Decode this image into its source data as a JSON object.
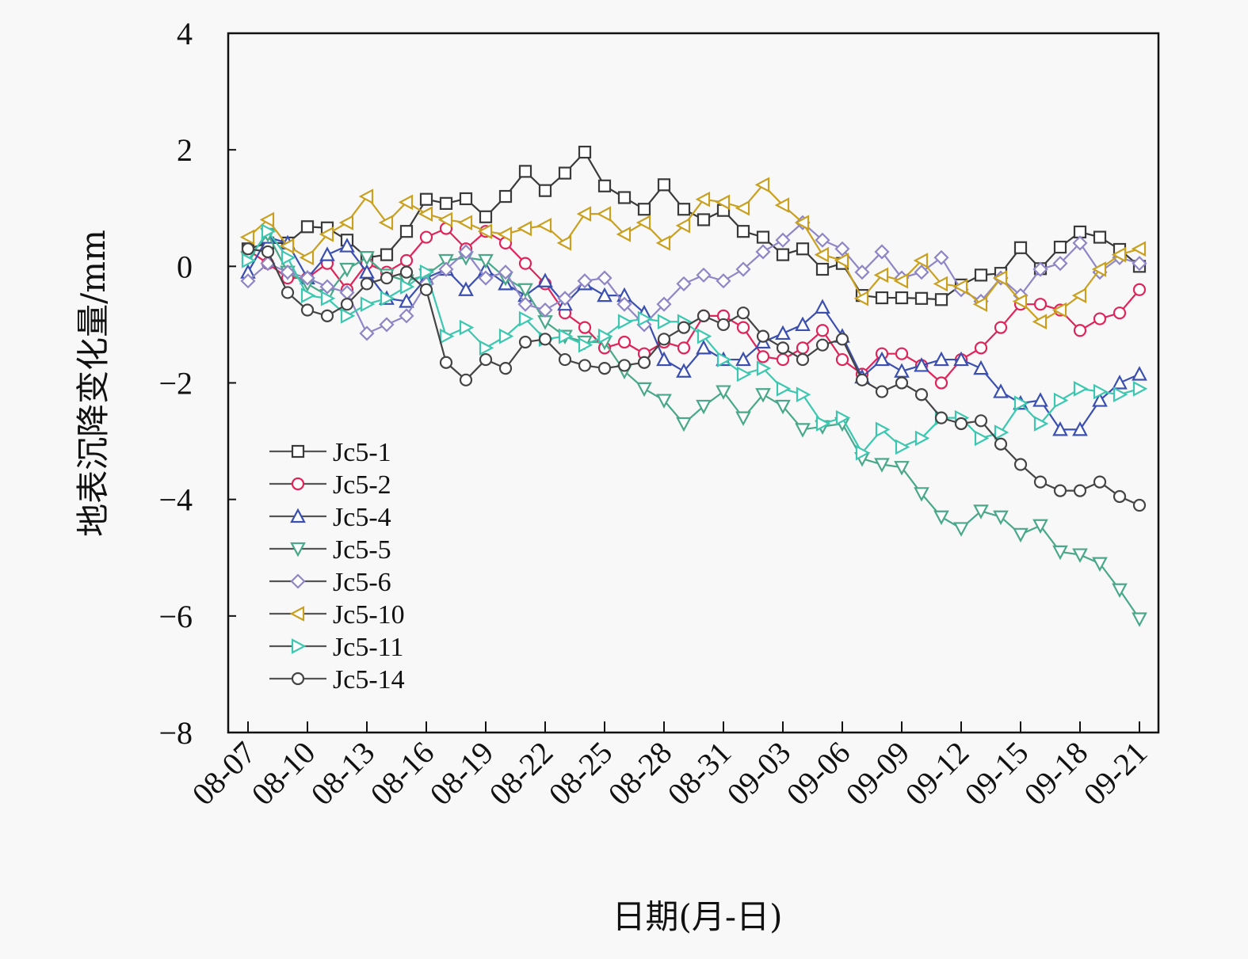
{
  "chart_data": {
    "type": "line",
    "title": "",
    "xlabel": "日期(月-日)",
    "ylabel": "地表沉降变化量/mm",
    "ylim": [
      -8,
      4
    ],
    "yticks": [
      4,
      2,
      0,
      -2,
      -4,
      -6,
      -8
    ],
    "ytick_labels": [
      "4",
      "2",
      "0",
      "−2",
      "−4",
      "−6",
      "−8"
    ],
    "xtick_labels": [
      "08-07",
      "08-10",
      "08-13",
      "08-16",
      "08-19",
      "08-22",
      "08-25",
      "08-28",
      "08-31",
      "09-03",
      "09-06",
      "09-09",
      "09-12",
      "09-15",
      "09-18",
      "09-21"
    ],
    "x": [
      "08-07",
      "08-08",
      "08-09",
      "08-10",
      "08-11",
      "08-12",
      "08-13",
      "08-14",
      "08-15",
      "08-16",
      "08-17",
      "08-18",
      "08-19",
      "08-20",
      "08-21",
      "08-22",
      "08-23",
      "08-24",
      "08-25",
      "08-26",
      "08-27",
      "08-28",
      "08-29",
      "08-30",
      "08-31",
      "09-01",
      "09-02",
      "09-03",
      "09-04",
      "09-05",
      "09-06",
      "09-07",
      "09-08",
      "09-09",
      "09-10",
      "09-11",
      "09-12",
      "09-13",
      "09-14",
      "09-15",
      "09-16",
      "09-17",
      "09-18",
      "09-19",
      "09-20",
      "09-21"
    ],
    "grid": false,
    "legend_position": "bottom-left",
    "series": [
      {
        "name": "Jc5-1",
        "marker": "square",
        "color": "#3a3a3a",
        "values": [
          0.3,
          0.4,
          0.4,
          0.68,
          0.66,
          0.45,
          0.15,
          0.2,
          0.6,
          1.15,
          1.08,
          1.16,
          0.85,
          1.2,
          1.63,
          1.3,
          1.6,
          1.96,
          1.38,
          1.18,
          0.98,
          1.4,
          0.98,
          0.8,
          0.96,
          0.6,
          0.5,
          0.2,
          0.3,
          -0.05,
          0.05,
          -0.5,
          -0.54,
          -0.54,
          -0.55,
          -0.57,
          -0.32,
          -0.15,
          -0.12,
          0.32,
          -0.04,
          0.33,
          0.59,
          0.5,
          0.29,
          0.0
        ]
      },
      {
        "name": "Jc5-2",
        "marker": "circle",
        "color": "#e0245a",
        "values": [
          0.28,
          0.05,
          -0.2,
          -0.2,
          0.05,
          -0.4,
          0.05,
          -0.1,
          0.1,
          0.5,
          0.65,
          0.3,
          0.6,
          0.4,
          0.05,
          -0.3,
          -0.8,
          -1.05,
          -1.4,
          -1.3,
          -1.5,
          -1.3,
          -1.4,
          -0.85,
          -0.85,
          -1.05,
          -1.55,
          -1.6,
          -1.4,
          -1.1,
          -1.6,
          -1.85,
          -1.5,
          -1.5,
          -1.7,
          -2.0,
          -1.6,
          -1.4,
          -1.05,
          -0.65,
          -0.65,
          -0.75,
          -1.1,
          -0.9,
          -0.8,
          -0.4
        ]
      },
      {
        "name": "Jc5-4",
        "marker": "triangle-up",
        "color": "#3a4fb0",
        "values": [
          -0.1,
          0.5,
          0.4,
          -0.2,
          0.2,
          0.35,
          -0.1,
          -0.55,
          -0.6,
          -0.2,
          -0.05,
          -0.4,
          -0.05,
          -0.3,
          -0.5,
          -0.25,
          -0.65,
          -0.3,
          -0.5,
          -0.5,
          -0.8,
          -1.6,
          -1.8,
          -1.4,
          -1.6,
          -1.6,
          -1.3,
          -1.15,
          -1.0,
          -0.7,
          -1.2,
          -1.9,
          -1.6,
          -1.8,
          -1.7,
          -1.6,
          -1.6,
          -1.75,
          -2.15,
          -2.35,
          -2.3,
          -2.8,
          -2.8,
          -2.3,
          -2.0,
          -1.85
        ]
      },
      {
        "name": "Jc5-5",
        "marker": "triangle-down",
        "color": "#4aa88a",
        "values": [
          0.15,
          0.55,
          -0.1,
          -0.3,
          -0.5,
          -0.05,
          0.15,
          -0.15,
          -0.25,
          -0.15,
          0.1,
          0.15,
          0.1,
          -0.2,
          -0.4,
          -0.95,
          -1.2,
          -1.3,
          -1.3,
          -1.8,
          -2.1,
          -2.3,
          -2.7,
          -2.4,
          -2.15,
          -2.6,
          -2.2,
          -2.4,
          -2.8,
          -2.75,
          -2.7,
          -3.3,
          -3.4,
          -3.45,
          -3.9,
          -4.3,
          -4.5,
          -4.2,
          -4.3,
          -4.6,
          -4.45,
          -4.9,
          -4.95,
          -5.1,
          -5.55,
          -6.05
        ]
      },
      {
        "name": "Jc5-6",
        "marker": "diamond",
        "color": "#8e86c6",
        "values": [
          -0.25,
          0.05,
          -0.1,
          -0.2,
          -0.35,
          -0.45,
          -1.15,
          -1.0,
          -0.85,
          -0.3,
          -0.05,
          0.25,
          -0.2,
          -0.1,
          -0.65,
          -0.75,
          -0.55,
          -0.25,
          -0.2,
          -0.65,
          -1.0,
          -0.65,
          -0.3,
          -0.15,
          -0.25,
          -0.05,
          0.25,
          0.45,
          0.75,
          0.45,
          0.3,
          -0.1,
          0.25,
          -0.2,
          -0.1,
          0.15,
          -0.4,
          -0.6,
          -0.2,
          -0.5,
          -0.05,
          0.05,
          0.4,
          -0.1,
          0.15,
          0.05
        ]
      },
      {
        "name": "Jc5-10",
        "marker": "triangle-left",
        "color": "#c9a020",
        "values": [
          0.5,
          0.8,
          0.35,
          0.15,
          0.55,
          0.75,
          1.2,
          0.75,
          1.1,
          0.9,
          0.8,
          0.75,
          0.6,
          0.55,
          0.65,
          0.7,
          0.4,
          0.9,
          0.9,
          0.55,
          0.75,
          0.4,
          0.7,
          1.15,
          1.1,
          1.0,
          1.4,
          1.05,
          0.75,
          0.2,
          0.1,
          -0.55,
          -0.15,
          -0.25,
          0.1,
          -0.3,
          -0.35,
          -0.65,
          -0.2,
          -0.6,
          -0.95,
          -0.75,
          -0.5,
          -0.05,
          0.2,
          0.3
        ]
      },
      {
        "name": "Jc5-11",
        "marker": "triangle-right",
        "color": "#3cc8b0",
        "values": [
          0.1,
          0.6,
          0.15,
          -0.5,
          -0.55,
          -0.85,
          -0.65,
          -0.55,
          -0.35,
          -0.1,
          -1.2,
          -1.05,
          -1.4,
          -1.2,
          -0.9,
          -1.25,
          -1.2,
          -1.35,
          -1.2,
          -0.95,
          -0.9,
          -0.95,
          -0.95,
          -1.2,
          -1.6,
          -1.85,
          -1.75,
          -2.1,
          -2.2,
          -2.7,
          -2.6,
          -3.2,
          -2.8,
          -3.1,
          -2.95,
          -2.6,
          -2.6,
          -2.95,
          -2.85,
          -2.35,
          -2.7,
          -2.3,
          -2.1,
          -2.15,
          -2.2,
          -2.1
        ]
      },
      {
        "name": "Jc5-14",
        "marker": "circle",
        "color": "#444444",
        "values": [
          0.3,
          0.25,
          -0.45,
          -0.75,
          -0.85,
          -0.65,
          -0.3,
          -0.2,
          -0.1,
          -0.4,
          -1.65,
          -1.95,
          -1.6,
          -1.75,
          -1.3,
          -1.25,
          -1.6,
          -1.7,
          -1.75,
          -1.7,
          -1.65,
          -1.25,
          -1.05,
          -0.85,
          -1.0,
          -0.8,
          -1.2,
          -1.4,
          -1.6,
          -1.35,
          -1.25,
          -1.95,
          -2.15,
          -2.0,
          -2.2,
          -2.6,
          -2.7,
          -2.65,
          -3.05,
          -3.4,
          -3.7,
          -3.85,
          -3.85,
          -3.7,
          -3.95,
          -4.1
        ]
      }
    ]
  }
}
